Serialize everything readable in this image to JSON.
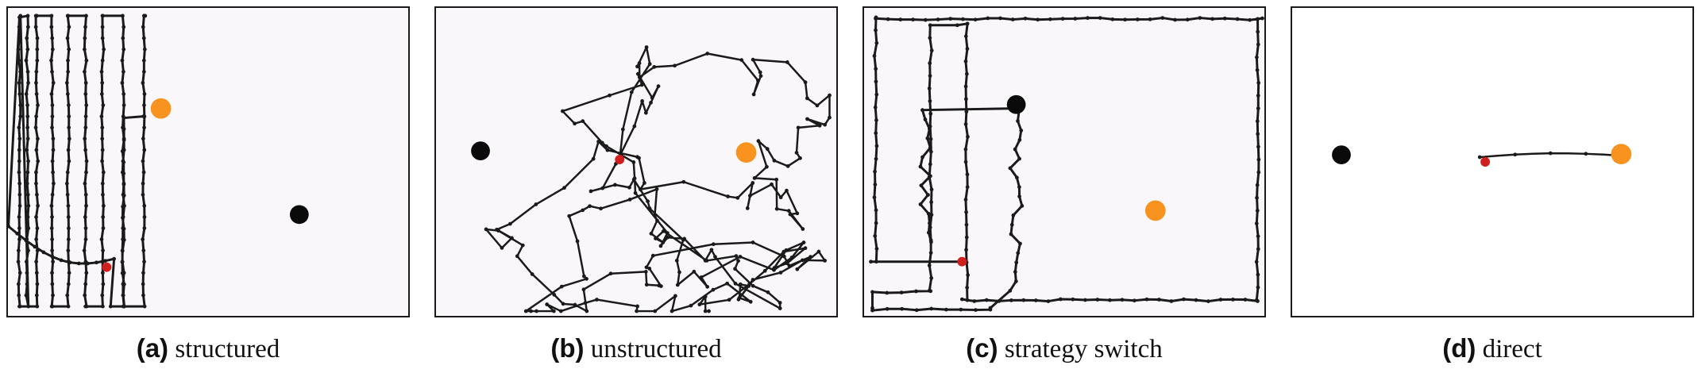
{
  "figure": {
    "colors": {
      "path": "#1a1a1a",
      "start": "#d11f1f",
      "orange_target": "#f7931e",
      "black_target": "#0a0a0a",
      "background": "#f9f7fa"
    },
    "panels": [
      {
        "id": "a",
        "tag": "(a)",
        "label": "structured"
      },
      {
        "id": "b",
        "tag": "(b)",
        "label": "unstructured"
      },
      {
        "id": "c",
        "tag": "(c)",
        "label": "strategy switch"
      },
      {
        "id": "d",
        "tag": "(d)",
        "label": "direct"
      }
    ]
  }
}
